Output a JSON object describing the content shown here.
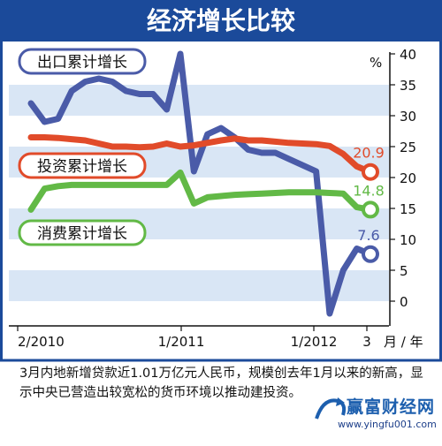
{
  "chart_data": {
    "type": "line",
    "title": "经济增长比较",
    "unit_label": "%",
    "x_tick_labels": [
      "2/2010",
      "1/2011",
      "1/2012",
      "3",
      "月 / 年"
    ],
    "y_ticks": [
      0,
      5,
      10,
      15,
      20,
      25,
      30,
      35,
      40
    ],
    "ylim": [
      -2,
      40
    ],
    "x": [
      0,
      1,
      2,
      3,
      4,
      5,
      6,
      7,
      8,
      9,
      10,
      11,
      12,
      13,
      14,
      15,
      16,
      17,
      18,
      19,
      20,
      21,
      22,
      23,
      24,
      25
    ],
    "series": [
      {
        "name": "出口累计增长",
        "color": "#4a5ba8",
        "values": [
          32,
          29,
          29.5,
          34,
          35.5,
          36,
          35.5,
          34,
          33.5,
          33.5,
          31,
          40,
          21,
          27,
          28,
          26.5,
          24.5,
          24,
          24,
          23,
          22,
          21,
          -2,
          5,
          8.5,
          7.6
        ],
        "end_label": "7.6"
      },
      {
        "name": "投资累计增长",
        "color": "#e14b2a",
        "values": [
          26.5,
          26.5,
          26.4,
          26.2,
          26,
          25.5,
          25,
          25,
          24.9,
          25,
          25.5,
          25,
          25.2,
          25.6,
          26,
          26.3,
          26,
          26,
          25.8,
          25.6,
          25.5,
          25.4,
          25.1,
          23.8,
          21.8,
          20.9
        ],
        "end_label": "20.9"
      },
      {
        "name": "消费累计增长",
        "color": "#62b946",
        "values": [
          14.8,
          18.2,
          18.6,
          18.8,
          18.8,
          18.8,
          18.8,
          18.8,
          18.8,
          18.8,
          18.8,
          20.8,
          15.8,
          16.8,
          17,
          17.2,
          17.3,
          17.4,
          17.5,
          17.6,
          17.6,
          17.6,
          17.5,
          17.4,
          15.2,
          14.8
        ],
        "end_label": "14.8"
      }
    ]
  },
  "caption": "3月内地新增贷款近1.01万亿元人民币，规模创去年1月以来的新高，显示中央已营造出较宽松的货币环境以推动建投资。",
  "watermark": {
    "title": "赢富财经网",
    "url": "www.yingfu001.com"
  }
}
